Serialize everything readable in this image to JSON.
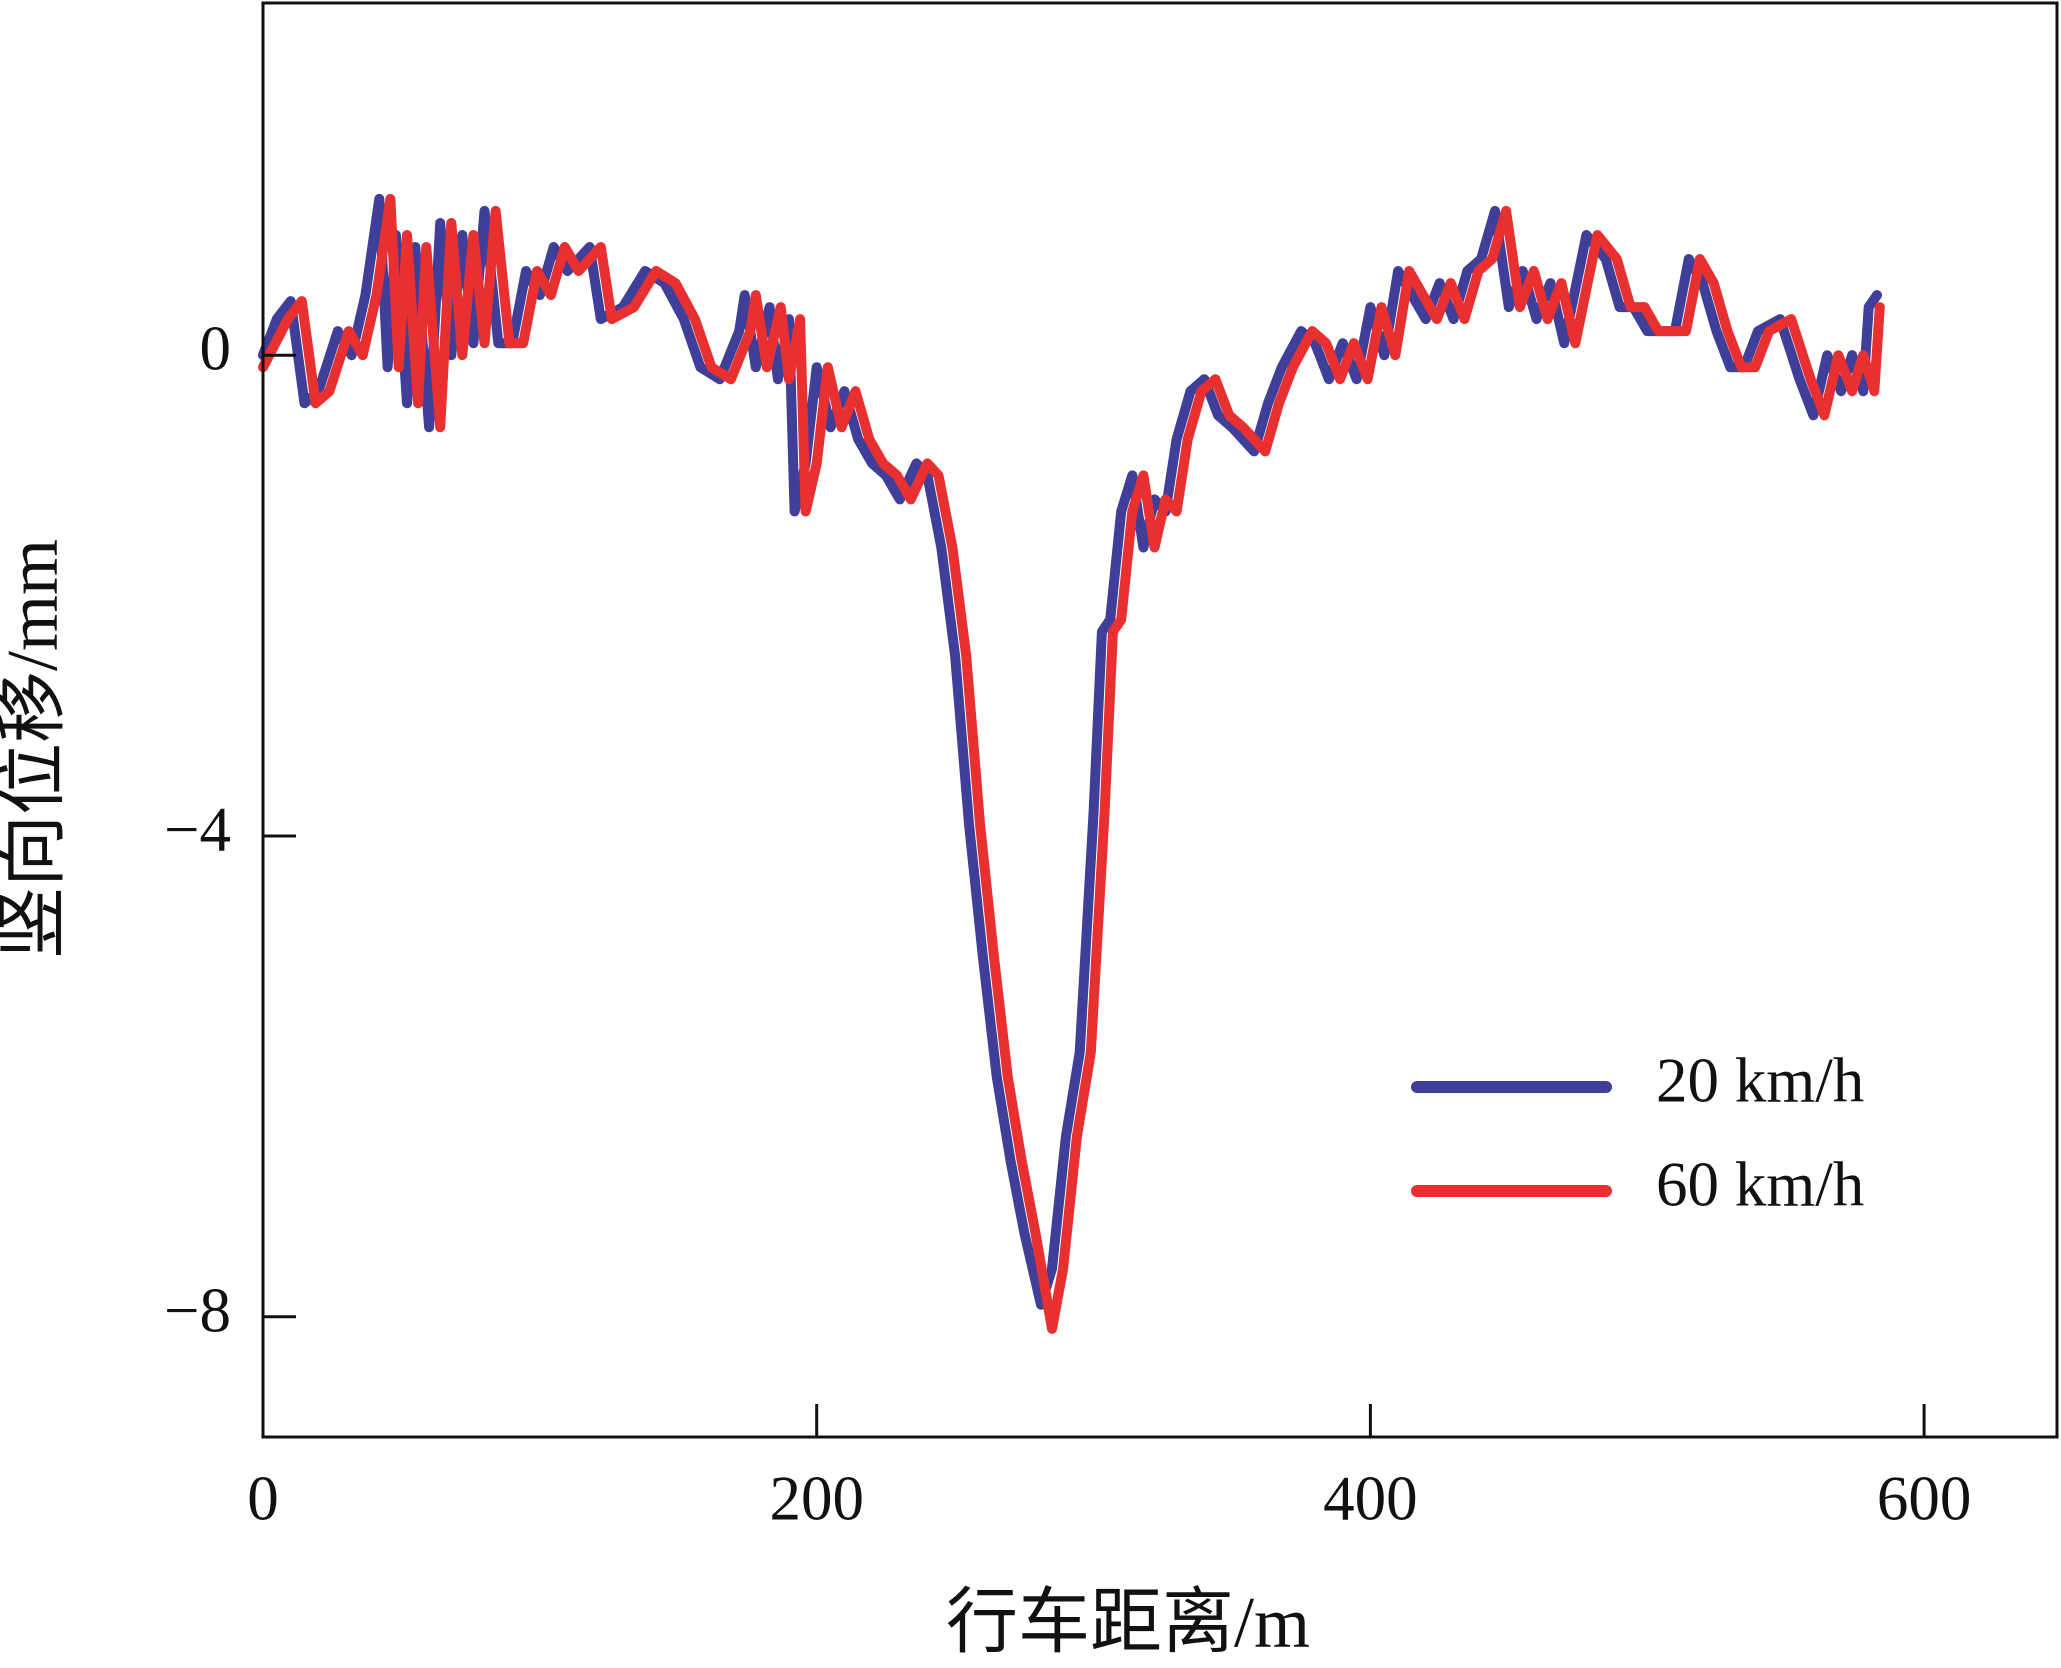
{
  "chart_data": {
    "type": "line",
    "xlabel": "行车距离/m",
    "ylabel": "竖向位移/mm",
    "xlim": [
      0,
      648
    ],
    "ylim": [
      -9,
      2.93
    ],
    "xticks": [
      0,
      200,
      400,
      600
    ],
    "yticks": [
      0,
      {
        "value": -4,
        "label": "−4"
      },
      {
        "value": -8,
        "label": "−8"
      }
    ],
    "legend": "lower right",
    "series": [
      {
        "name": "20 km/h",
        "color": "#3f3f9a",
        "x": [
          0,
          5,
          10,
          15,
          20,
          27,
          32,
          37,
          42,
          45,
          48,
          52,
          55,
          60,
          64,
          68,
          72,
          76,
          80,
          85,
          90,
          95,
          100,
          105,
          110,
          118,
          122,
          130,
          138,
          145,
          152,
          158,
          165,
          172,
          174,
          178,
          183,
          186,
          190,
          192,
          196,
          200,
          205,
          210,
          215,
          220,
          225,
          230,
          236,
          240,
          245,
          250,
          255,
          260,
          265,
          270,
          275,
          281,
          285,
          290,
          295,
          300,
          303,
          306,
          310,
          314,
          318,
          322,
          326,
          330,
          335,
          340,
          345,
          350,
          358,
          363,
          368,
          375,
          380,
          385,
          390,
          395,
          400,
          405,
          410,
          415,
          420,
          425,
          430,
          435,
          440,
          445,
          450,
          455,
          460,
          465,
          470,
          478,
          485,
          490,
          495,
          500,
          510,
          515,
          520,
          525,
          530,
          535,
          540,
          548,
          555,
          560,
          565,
          570,
          574,
          578,
          580,
          583
        ],
        "values": [
          0,
          0.3,
          0.45,
          -0.4,
          -0.3,
          0.2,
          0.0,
          0.5,
          1.3,
          -0.1,
          1.0,
          -0.4,
          0.9,
          -0.6,
          1.1,
          0.0,
          1.0,
          0.1,
          1.2,
          0.1,
          0.1,
          0.7,
          0.5,
          0.9,
          0.7,
          0.9,
          0.3,
          0.4,
          0.7,
          0.6,
          0.3,
          -0.1,
          -0.2,
          0.2,
          0.5,
          -0.1,
          0.4,
          -0.2,
          0.3,
          -1.3,
          -0.9,
          -0.1,
          -0.6,
          -0.3,
          -0.7,
          -0.9,
          -1.0,
          -1.2,
          -0.9,
          -1.0,
          -1.6,
          -2.5,
          -3.9,
          -5.0,
          -6.0,
          -6.7,
          -7.3,
          -7.9,
          -7.6,
          -6.5,
          -5.8,
          -3.8,
          -2.3,
          -2.2,
          -1.3,
          -1.0,
          -1.6,
          -1.2,
          -1.3,
          -0.7,
          -0.3,
          -0.2,
          -0.5,
          -0.6,
          -0.8,
          -0.4,
          -0.1,
          0.2,
          0.1,
          -0.2,
          0.1,
          -0.2,
          0.4,
          0.0,
          0.7,
          0.5,
          0.3,
          0.6,
          0.3,
          0.7,
          0.8,
          1.2,
          0.4,
          0.7,
          0.3,
          0.6,
          0.1,
          1.0,
          0.8,
          0.4,
          0.4,
          0.2,
          0.2,
          0.8,
          0.6,
          0.2,
          -0.1,
          -0.1,
          0.2,
          0.3,
          -0.2,
          -0.5,
          0.0,
          -0.3,
          0.0,
          -0.3,
          0.4,
          0.5
        ]
      },
      {
        "name": "60 km/h",
        "color": "#e83030",
        "x": [
          0,
          9,
          14,
          19,
          24,
          31,
          36,
          41,
          46,
          49,
          52,
          56,
          59,
          64,
          68,
          72,
          76,
          80,
          84,
          89,
          94,
          99,
          104,
          109,
          114,
          122,
          126,
          134,
          142,
          149,
          156,
          162,
          169,
          176,
          178,
          182,
          187,
          190,
          194,
          196,
          200,
          204,
          209,
          214,
          219,
          224,
          229,
          234,
          240,
          244,
          249,
          254,
          259,
          264,
          269,
          274,
          279,
          285,
          289,
          294,
          299,
          304,
          307,
          310,
          314,
          318,
          322,
          326,
          330,
          334,
          339,
          344,
          349,
          354,
          362,
          367,
          372,
          379,
          384,
          389,
          394,
          399,
          404,
          409,
          414,
          419,
          424,
          429,
          434,
          439,
          444,
          449,
          454,
          459,
          464,
          469,
          474,
          482,
          489,
          494,
          499,
          504,
          514,
          519,
          524,
          529,
          534,
          539,
          544,
          552,
          559,
          564,
          569,
          574,
          578,
          582,
          584
        ],
        "values": [
          -0.1,
          0.3,
          0.45,
          -0.4,
          -0.3,
          0.2,
          0.0,
          0.5,
          1.3,
          -0.1,
          1.0,
          -0.4,
          0.9,
          -0.6,
          1.1,
          0.0,
          1.0,
          0.1,
          1.2,
          0.1,
          0.1,
          0.7,
          0.5,
          0.9,
          0.7,
          0.9,
          0.3,
          0.4,
          0.7,
          0.6,
          0.3,
          -0.1,
          -0.2,
          0.2,
          0.5,
          -0.1,
          0.4,
          -0.2,
          0.3,
          -1.3,
          -0.9,
          -0.1,
          -0.6,
          -0.3,
          -0.7,
          -0.9,
          -1.0,
          -1.2,
          -0.9,
          -1.0,
          -1.6,
          -2.5,
          -3.9,
          -5.0,
          -6.0,
          -6.7,
          -7.3,
          -8.1,
          -7.6,
          -6.5,
          -5.8,
          -3.8,
          -2.3,
          -2.2,
          -1.3,
          -1.0,
          -1.6,
          -1.2,
          -1.3,
          -0.7,
          -0.3,
          -0.2,
          -0.5,
          -0.6,
          -0.8,
          -0.4,
          -0.1,
          0.2,
          0.1,
          -0.2,
          0.1,
          -0.2,
          0.4,
          0.0,
          0.7,
          0.5,
          0.3,
          0.6,
          0.3,
          0.7,
          0.8,
          1.2,
          0.4,
          0.7,
          0.3,
          0.6,
          0.1,
          1.0,
          0.8,
          0.4,
          0.4,
          0.2,
          0.2,
          0.8,
          0.6,
          0.2,
          -0.1,
          -0.1,
          0.2,
          0.3,
          -0.2,
          -0.5,
          0.0,
          -0.3,
          0.0,
          -0.3,
          0.4
        ]
      }
    ]
  }
}
